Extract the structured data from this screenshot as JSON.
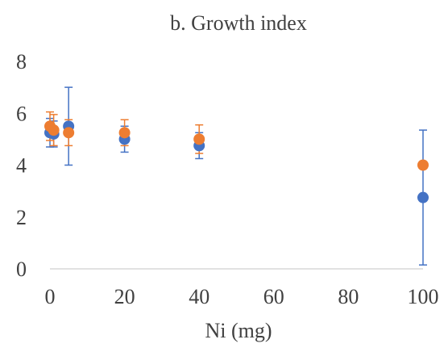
{
  "chart_data": {
    "type": "scatter",
    "title": "b. Growth index",
    "xlabel": "Ni (mg)",
    "ylabel": "",
    "xlim": [
      0,
      100
    ],
    "ylim": [
      0,
      8
    ],
    "xticks": [
      0,
      20,
      40,
      60,
      80,
      100
    ],
    "yticks": [
      0,
      2,
      4,
      6,
      8
    ],
    "xtick_labels": [
      "0",
      "20",
      "40",
      "60",
      "80",
      "100"
    ],
    "ytick_labels": [
      "0",
      "2",
      "4",
      "6",
      "8"
    ],
    "grid": false,
    "legend": "none",
    "series": [
      {
        "color": "#4472C4",
        "points": [
          {
            "x": 0,
            "y": 5.25,
            "err": 0.55
          },
          {
            "x": 1,
            "y": 5.2,
            "err": 0.5
          },
          {
            "x": 5,
            "y": 5.5,
            "err": 1.5
          },
          {
            "x": 20,
            "y": 5.0,
            "err": 0.5
          },
          {
            "x": 40,
            "y": 4.75,
            "err": 0.5
          },
          {
            "x": 100,
            "y": 2.75,
            "err": 2.6
          }
        ]
      },
      {
        "color": "#ED7D31",
        "points": [
          {
            "x": 0,
            "y": 5.5,
            "err": 0.55
          },
          {
            "x": 1,
            "y": 5.35,
            "err": 0.6
          },
          {
            "x": 5,
            "y": 5.25,
            "err": 0.5
          },
          {
            "x": 20,
            "y": 5.25,
            "err": 0.5
          },
          {
            "x": 40,
            "y": 5.0,
            "err": 0.55
          },
          {
            "x": 100,
            "y": 4.0,
            "err": 0.0
          }
        ]
      }
    ],
    "axis_color": "#D9D9D9"
  }
}
